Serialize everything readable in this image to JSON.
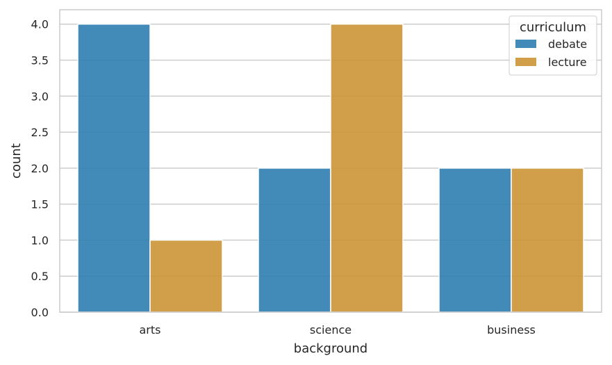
{
  "chart_data": {
    "type": "bar",
    "categories": [
      "arts",
      "science",
      "business"
    ],
    "series": [
      {
        "name": "debate",
        "values": [
          4,
          2,
          2
        ],
        "color": "#2e7eb0"
      },
      {
        "name": "lecture",
        "values": [
          1,
          4,
          2
        ],
        "color": "#cc9535"
      }
    ],
    "xlabel": "background",
    "ylabel": "count",
    "ylim": [
      0,
      4.2
    ],
    "yticks": [
      "0.0",
      "0.5",
      "1.0",
      "1.5",
      "2.0",
      "2.5",
      "3.0",
      "3.5",
      "4.0"
    ],
    "legend_title": "curriculum",
    "legend_position": "top-right",
    "grid": true
  }
}
